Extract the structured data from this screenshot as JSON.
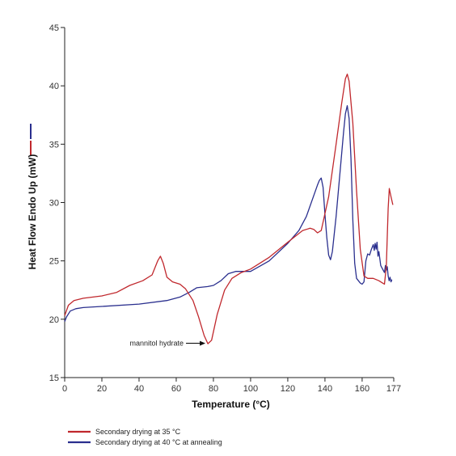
{
  "chart_data": {
    "type": "line",
    "title": "",
    "xlabel": "Temperature (°C)",
    "ylabel": "Heat Flow Endo Up (mW)",
    "xlim": [
      0,
      177
    ],
    "ylim": [
      15,
      45
    ],
    "x_ticks": [
      0,
      20,
      40,
      60,
      80,
      100,
      120,
      140,
      160,
      177
    ],
    "y_ticks": [
      15,
      20,
      25,
      30,
      35,
      40,
      45
    ],
    "grid": false,
    "legend_position": "bottom-left",
    "annotations": [
      {
        "text": "mannitol hydrate",
        "x": 77,
        "y": 17.8
      }
    ],
    "series": [
      {
        "name": "Secondary drying at 35 °C",
        "color": "#c0282d",
        "points": [
          [
            0,
            20.3
          ],
          [
            2,
            21.2
          ],
          [
            5,
            21.6
          ],
          [
            10,
            21.8
          ],
          [
            20,
            22.0
          ],
          [
            28,
            22.3
          ],
          [
            35,
            22.9
          ],
          [
            42,
            23.3
          ],
          [
            47,
            23.8
          ],
          [
            50,
            25.0
          ],
          [
            51.5,
            25.4
          ],
          [
            53,
            24.8
          ],
          [
            55,
            23.6
          ],
          [
            58,
            23.2
          ],
          [
            62,
            23.0
          ],
          [
            65,
            22.6
          ],
          [
            69,
            21.6
          ],
          [
            72,
            20.2
          ],
          [
            75,
            18.6
          ],
          [
            77,
            17.9
          ],
          [
            79,
            18.2
          ],
          [
            82,
            20.4
          ],
          [
            86,
            22.5
          ],
          [
            90,
            23.5
          ],
          [
            95,
            24.0
          ],
          [
            100,
            24.3
          ],
          [
            110,
            25.3
          ],
          [
            120,
            26.6
          ],
          [
            128,
            27.6
          ],
          [
            132,
            27.8
          ],
          [
            134,
            27.7
          ],
          [
            136,
            27.4
          ],
          [
            138,
            27.6
          ],
          [
            142,
            30.5
          ],
          [
            146,
            35.0
          ],
          [
            149,
            38.5
          ],
          [
            151,
            40.6
          ],
          [
            152,
            41.0
          ],
          [
            153,
            40.4
          ],
          [
            155,
            36.8
          ],
          [
            157,
            31.0
          ],
          [
            159,
            26.0
          ],
          [
            161,
            23.7
          ],
          [
            163,
            23.5
          ],
          [
            166,
            23.5
          ],
          [
            169,
            23.3
          ],
          [
            171,
            23.1
          ],
          [
            172,
            23.0
          ],
          [
            173,
            24.5
          ],
          [
            174,
            29.5
          ],
          [
            174.6,
            31.2
          ],
          [
            175.5,
            30.5
          ],
          [
            176.5,
            29.8
          ]
        ]
      },
      {
        "name": "Secondary drying at 40 °C at annealing",
        "color": "#2a2f8e",
        "points": [
          [
            0,
            19.8
          ],
          [
            1,
            20.2
          ],
          [
            3,
            20.7
          ],
          [
            6,
            20.9
          ],
          [
            10,
            21.0
          ],
          [
            20,
            21.1
          ],
          [
            40,
            21.3
          ],
          [
            55,
            21.6
          ],
          [
            62,
            21.9
          ],
          [
            67,
            22.3
          ],
          [
            71,
            22.7
          ],
          [
            77,
            22.8
          ],
          [
            80,
            22.9
          ],
          [
            84,
            23.3
          ],
          [
            88,
            23.9
          ],
          [
            92,
            24.1
          ],
          [
            95,
            24.1
          ],
          [
            100,
            24.1
          ],
          [
            110,
            25.0
          ],
          [
            120,
            26.5
          ],
          [
            126,
            27.6
          ],
          [
            130,
            28.8
          ],
          [
            134,
            30.6
          ],
          [
            136,
            31.5
          ],
          [
            137,
            31.9
          ],
          [
            138,
            32.1
          ],
          [
            139,
            31.3
          ],
          [
            140,
            29.0
          ],
          [
            141,
            27.0
          ],
          [
            142,
            25.5
          ],
          [
            143,
            25.1
          ],
          [
            144,
            25.8
          ],
          [
            146,
            28.8
          ],
          [
            148,
            32.4
          ],
          [
            150,
            36.0
          ],
          [
            151,
            37.6
          ],
          [
            152,
            38.3
          ],
          [
            153,
            37.2
          ],
          [
            154,
            33.8
          ],
          [
            155,
            28.5
          ],
          [
            156,
            24.8
          ],
          [
            157,
            23.5
          ],
          [
            158,
            23.3
          ],
          [
            159,
            23.1
          ],
          [
            160,
            23.0
          ],
          [
            161,
            23.2
          ],
          [
            162,
            25.0
          ],
          [
            163,
            25.6
          ],
          [
            164,
            25.5
          ],
          [
            165,
            26.0
          ],
          [
            166,
            26.4
          ],
          [
            166.5,
            25.9
          ],
          [
            167,
            26.5
          ],
          [
            167.5,
            26.0
          ],
          [
            168,
            26.6
          ],
          [
            168.5,
            25.4
          ],
          [
            169,
            25.8
          ],
          [
            170,
            24.6
          ],
          [
            171,
            24.3
          ],
          [
            172,
            24.0
          ],
          [
            172.5,
            24.6
          ],
          [
            173,
            24.2
          ],
          [
            173.5,
            24.5
          ],
          [
            174,
            23.7
          ],
          [
            174.5,
            23.3
          ],
          [
            175,
            23.6
          ],
          [
            175.5,
            23.2
          ],
          [
            176,
            23.4
          ]
        ]
      }
    ]
  }
}
